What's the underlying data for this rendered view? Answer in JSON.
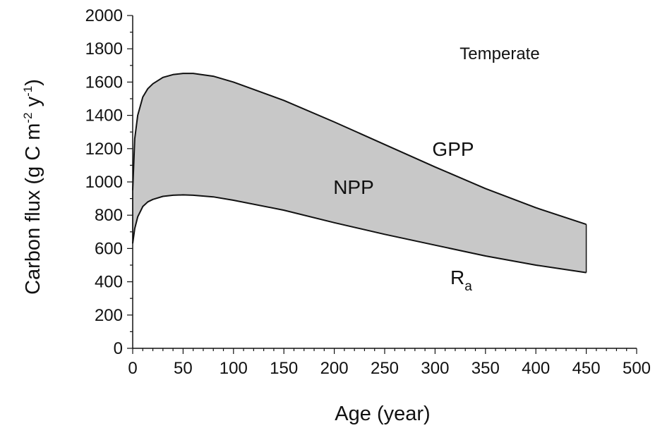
{
  "chart_data": {
    "type": "area",
    "xlabel": "Age (year)",
    "ylabel": {
      "prefix": "Carbon flux (g C m",
      "exp1": "-2",
      "mid": " y",
      "exp2": "-1",
      "suffix": ")"
    },
    "xlim": [
      0,
      500
    ],
    "ylim": [
      0,
      2000
    ],
    "x_ticks": [
      "0",
      "50",
      "100",
      "150",
      "200",
      "250",
      "300",
      "350",
      "400",
      "450",
      "500"
    ],
    "y_ticks": [
      "0",
      "200",
      "400",
      "600",
      "800",
      "1000",
      "1200",
      "1400",
      "1600",
      "1800",
      "2000"
    ],
    "grid": false,
    "x": [
      0,
      2,
      5,
      10,
      15,
      20,
      30,
      40,
      50,
      60,
      80,
      100,
      150,
      200,
      250,
      300,
      350,
      400,
      450
    ],
    "series": [
      {
        "name": "GPP",
        "values": [
          950,
          1260,
          1400,
          1510,
          1560,
          1590,
          1628,
          1645,
          1652,
          1652,
          1635,
          1600,
          1490,
          1360,
          1225,
          1090,
          960,
          845,
          745
        ]
      },
      {
        "name": "Ra",
        "values": [
          630,
          720,
          790,
          852,
          880,
          895,
          913,
          920,
          922,
          920,
          910,
          890,
          830,
          755,
          685,
          620,
          555,
          500,
          455
        ]
      }
    ],
    "fill_between": {
      "upper": "GPP",
      "lower": "Ra",
      "color": "#c8c8c8"
    },
    "annotations": {
      "temperate": "Temperate",
      "gpp": "GPP",
      "npp": "NPP",
      "ra_main": "R",
      "ra_sub": "a"
    }
  }
}
